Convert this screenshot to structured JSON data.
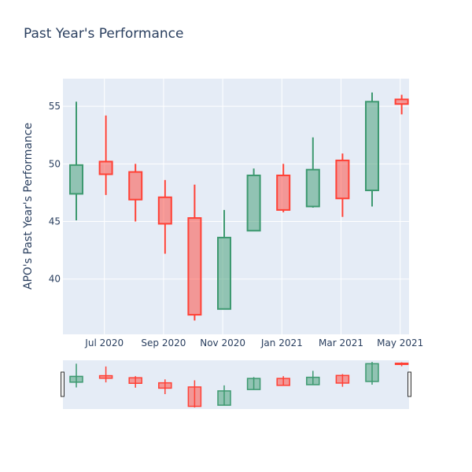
{
  "chart_data": {
    "type": "candlestick",
    "title": "Past Year's Performance",
    "xlabel": "",
    "ylabel": "APO's Past Year's Performance",
    "ylim": [
      35.2,
      57.4
    ],
    "y_ticks": [
      40,
      45,
      50,
      55
    ],
    "x_tick_labels": [
      "Jul 2020",
      "Sep 2020",
      "Nov 2020",
      "Jan 2021",
      "Mar 2021",
      "May 2021"
    ],
    "x_tick_months": [
      2,
      4,
      6,
      8,
      10,
      12
    ],
    "range_slider": true,
    "grid": true,
    "colors": {
      "increasing": "#3d9970",
      "decreasing": "#ff4136",
      "plot_bg": "#e5ecf6",
      "grid": "#ffffff"
    },
    "series": [
      {
        "month": "May 2020",
        "open": 47.4,
        "high": 55.4,
        "low": 45.1,
        "close": 49.9
      },
      {
        "month": "Jun 2020",
        "open": 50.2,
        "high": 54.2,
        "low": 47.3,
        "close": 49.1
      },
      {
        "month": "Jul 2020",
        "open": 49.3,
        "high": 50.0,
        "low": 45.0,
        "close": 46.9
      },
      {
        "month": "Aug 2020",
        "open": 47.1,
        "high": 48.6,
        "low": 42.2,
        "close": 44.8
      },
      {
        "month": "Sep 2020",
        "open": 45.3,
        "high": 48.2,
        "low": 36.4,
        "close": 36.9
      },
      {
        "month": "Oct 2020",
        "open": 37.4,
        "high": 46.0,
        "low": 37.4,
        "close": 43.6
      },
      {
        "month": "Nov 2020",
        "open": 44.2,
        "high": 49.6,
        "low": 44.2,
        "close": 49.0
      },
      {
        "month": "Dec 2020",
        "open": 49.0,
        "high": 50.0,
        "low": 45.8,
        "close": 46.0
      },
      {
        "month": "Jan 2021",
        "open": 46.3,
        "high": 52.3,
        "low": 46.2,
        "close": 49.5
      },
      {
        "month": "Feb 2021",
        "open": 50.3,
        "high": 50.9,
        "low": 45.4,
        "close": 47.0
      },
      {
        "month": "Mar 2021",
        "open": 47.7,
        "high": 56.2,
        "low": 46.3,
        "close": 55.4
      },
      {
        "month": "Apr 2021",
        "open": 55.6,
        "high": 56.0,
        "low": 54.3,
        "close": 55.2
      }
    ]
  }
}
